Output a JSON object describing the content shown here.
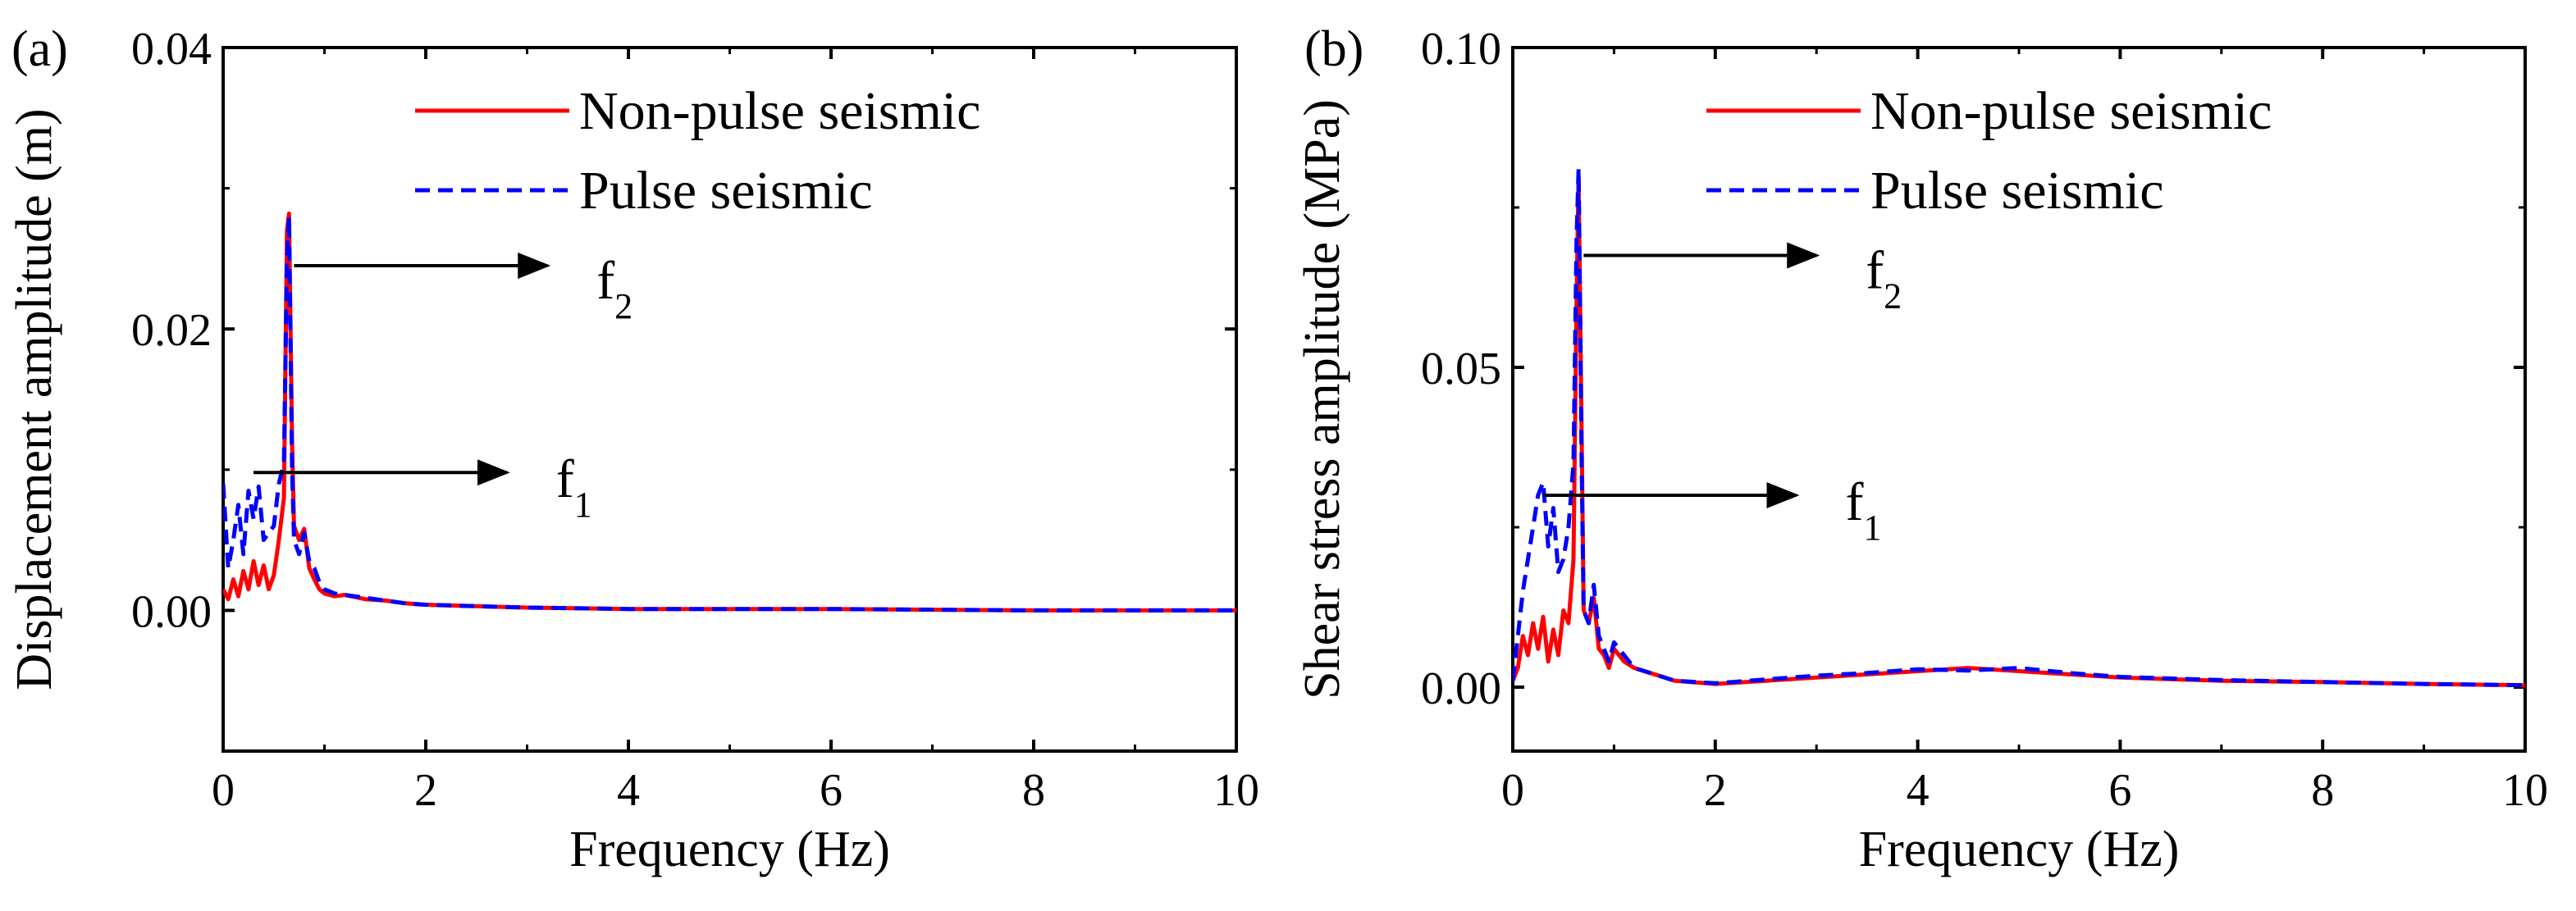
{
  "figure": {
    "panels": [
      {
        "id": "a",
        "tag": "(a)"
      },
      {
        "id": "b",
        "tag": "(b)"
      }
    ]
  },
  "colors": {
    "non_pulse": "#ff0000",
    "pulse": "#0000ff",
    "axis": "#000000"
  },
  "chart_data": [
    {
      "type": "line",
      "panel": "(a)",
      "title": "",
      "xlabel": "Frequency (Hz)",
      "ylabel": "Displacement amplitude (m)",
      "xlim": [
        0,
        10
      ],
      "ylim": [
        -0.01,
        0.04
      ],
      "xticks": [
        0,
        2,
        4,
        6,
        8,
        10
      ],
      "xtick_labels": [
        "0",
        "2",
        "4",
        "6",
        "8",
        "10"
      ],
      "yticks": [
        0.0,
        0.02,
        0.04
      ],
      "ytick_labels": [
        "0.00",
        "0.02",
        "0.04"
      ],
      "legend": {
        "position": "top-right",
        "entries": [
          "Non-pulse seismic",
          "Pulse seismic"
        ]
      },
      "series": [
        {
          "name": "Non-pulse seismic",
          "style": "solid",
          "color": "#ff0000",
          "x": [
            0,
            0.05,
            0.1,
            0.15,
            0.2,
            0.25,
            0.3,
            0.35,
            0.4,
            0.45,
            0.5,
            0.55,
            0.6,
            0.63,
            0.65,
            0.68,
            0.7,
            0.75,
            0.8,
            0.85,
            0.9,
            0.95,
            1.0,
            1.1,
            1.2,
            1.4,
            1.6,
            1.8,
            2.0,
            2.5,
            3.0,
            4.0,
            5.0,
            6.0,
            8.0,
            10.0
          ],
          "y": [
            0.0015,
            0.0008,
            0.0022,
            0.001,
            0.0028,
            0.0015,
            0.0035,
            0.0018,
            0.0032,
            0.0015,
            0.0025,
            0.005,
            0.008,
            0.027,
            0.0282,
            0.012,
            0.006,
            0.005,
            0.0058,
            0.003,
            0.0022,
            0.0015,
            0.0012,
            0.001,
            0.0011,
            0.0008,
            0.0007,
            0.0005,
            0.0004,
            0.0003,
            0.0002,
            0.0001,
            0.0001,
            0.0001,
            0.0,
            0.0
          ]
        },
        {
          "name": "Pulse seismic",
          "style": "dashed",
          "color": "#0000ff",
          "x": [
            0,
            0.05,
            0.1,
            0.15,
            0.2,
            0.25,
            0.3,
            0.35,
            0.4,
            0.45,
            0.5,
            0.55,
            0.6,
            0.63,
            0.65,
            0.68,
            0.7,
            0.75,
            0.8,
            0.85,
            0.9,
            0.95,
            1.0,
            1.1,
            1.2,
            1.4,
            1.6,
            1.8,
            2.0,
            2.5,
            3.0,
            4.0,
            5.0,
            6.0,
            8.0,
            10.0
          ],
          "y": [
            0.009,
            0.003,
            0.005,
            0.0075,
            0.004,
            0.0085,
            0.0065,
            0.0088,
            0.005,
            0.0055,
            0.006,
            0.009,
            0.0105,
            0.025,
            0.028,
            0.01,
            0.005,
            0.004,
            0.0055,
            0.0035,
            0.003,
            0.002,
            0.0015,
            0.0012,
            0.0011,
            0.0009,
            0.0007,
            0.0005,
            0.0004,
            0.0003,
            0.0002,
            0.0001,
            0.0001,
            0.0001,
            0.0,
            0.0
          ]
        }
      ],
      "annotations": [
        {
          "base": "f",
          "sub": "2",
          "frequency": 0.7,
          "value": 0.0245,
          "arrow_x_end": 3.2
        },
        {
          "base": "f",
          "sub": "1",
          "frequency": 0.3,
          "value": 0.0098,
          "arrow_x_end": 2.8
        }
      ]
    },
    {
      "type": "line",
      "panel": "(b)",
      "title": "",
      "xlabel": "Frequency (Hz)",
      "ylabel": "Shear stress amplitude (MPa)",
      "xlim": [
        0,
        10
      ],
      "ylim": [
        -0.01,
        0.1
      ],
      "xticks": [
        0,
        2,
        4,
        6,
        8,
        10
      ],
      "xtick_labels": [
        "0",
        "2",
        "4",
        "6",
        "8",
        "10"
      ],
      "yticks": [
        0.0,
        0.05,
        0.1
      ],
      "ytick_labels": [
        "0.00",
        "0.05",
        "0.10"
      ],
      "legend": {
        "position": "top-right",
        "entries": [
          "Non-pulse seismic",
          "Pulse seismic"
        ]
      },
      "series": [
        {
          "name": "Non-pulse seismic",
          "style": "solid",
          "color": "#ff0000",
          "x": [
            0,
            0.05,
            0.1,
            0.15,
            0.2,
            0.25,
            0.3,
            0.35,
            0.4,
            0.45,
            0.5,
            0.55,
            0.6,
            0.63,
            0.65,
            0.68,
            0.7,
            0.75,
            0.8,
            0.85,
            0.9,
            0.95,
            1.0,
            1.1,
            1.2,
            1.4,
            1.6,
            2.0,
            2.5,
            3.0,
            3.5,
            4.0,
            4.5,
            5.0,
            5.5,
            6.0,
            7.0,
            8.0,
            9.0,
            10.0
          ],
          "y": [
            0.001,
            0.003,
            0.008,
            0.005,
            0.01,
            0.006,
            0.011,
            0.004,
            0.009,
            0.005,
            0.012,
            0.01,
            0.02,
            0.06,
            0.08,
            0.04,
            0.012,
            0.01,
            0.014,
            0.006,
            0.005,
            0.003,
            0.006,
            0.004,
            0.003,
            0.002,
            0.001,
            0.0005,
            0.001,
            0.0015,
            0.002,
            0.0025,
            0.003,
            0.0025,
            0.002,
            0.0015,
            0.001,
            0.0008,
            0.0005,
            0.0003
          ]
        },
        {
          "name": "Pulse seismic",
          "style": "dashed",
          "color": "#0000ff",
          "x": [
            0,
            0.05,
            0.1,
            0.15,
            0.2,
            0.25,
            0.3,
            0.35,
            0.4,
            0.45,
            0.5,
            0.55,
            0.6,
            0.63,
            0.65,
            0.68,
            0.7,
            0.75,
            0.8,
            0.85,
            0.9,
            0.95,
            1.0,
            1.1,
            1.2,
            1.4,
            1.6,
            2.0,
            2.5,
            3.0,
            3.5,
            4.0,
            4.5,
            5.0,
            5.5,
            6.0,
            7.0,
            8.0,
            9.0,
            10.0
          ],
          "y": [
            0.001,
            0.008,
            0.015,
            0.02,
            0.025,
            0.03,
            0.032,
            0.022,
            0.028,
            0.018,
            0.02,
            0.025,
            0.035,
            0.07,
            0.081,
            0.035,
            0.012,
            0.01,
            0.016,
            0.008,
            0.006,
            0.004,
            0.007,
            0.005,
            0.003,
            0.002,
            0.001,
            0.0006,
            0.0012,
            0.0018,
            0.0022,
            0.0028,
            0.0026,
            0.003,
            0.0022,
            0.0016,
            0.0011,
            0.0008,
            0.0005,
            0.0003
          ]
        }
      ],
      "annotations": [
        {
          "base": "f",
          "sub": "2",
          "frequency": 0.7,
          "value": 0.0675,
          "arrow_x_end": 3.0
        },
        {
          "base": "f",
          "sub": "1",
          "frequency": 0.3,
          "value": 0.03,
          "arrow_x_end": 2.8
        }
      ]
    }
  ]
}
